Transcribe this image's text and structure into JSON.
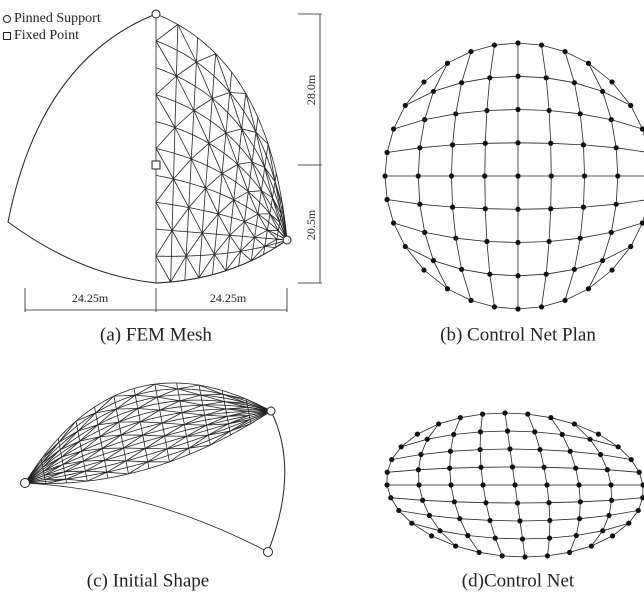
{
  "legend": {
    "pinned": "Pinned Support",
    "fixed": "Fixed Point"
  },
  "dimensions": {
    "height_upper": "28.0m",
    "height_lower": "20.5m",
    "width_left": "24.25m",
    "width_right": "24.25m"
  },
  "panels": [
    {
      "caption": "(a) FEM Mesh"
    },
    {
      "caption": "(b) Control Net Plan"
    },
    {
      "caption": "(c) Initial Shape"
    },
    {
      "caption": "(d)Control Net"
    }
  ]
}
